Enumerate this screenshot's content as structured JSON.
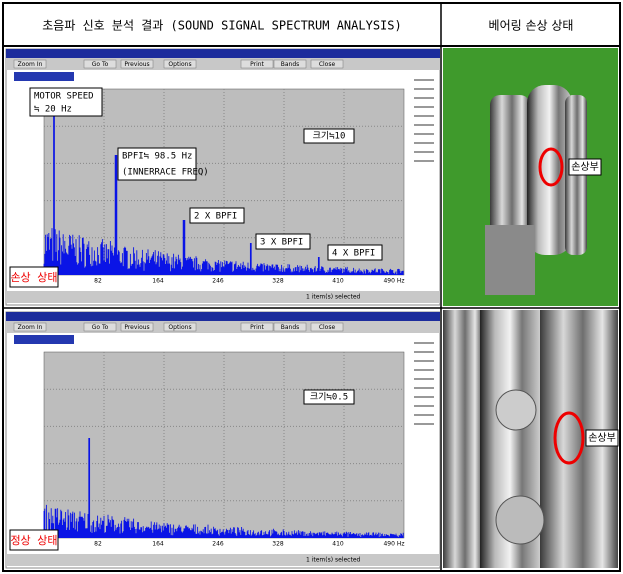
{
  "header": {
    "analysis_title": "초음파 신호 분석 결과 (SOUND SIGNAL SPECTRUM ANALYSIS)",
    "bearing_title": "베어링 손상 상태"
  },
  "toolbar": [
    "Zoom In",
    "Go To",
    "Previous",
    "Options",
    "Print",
    "Bands",
    "Close"
  ],
  "panels": [
    {
      "x_ticks": [
        "82",
        "164",
        "246",
        "328",
        "410",
        "490 Hz"
      ],
      "magnitude": "크기≒10",
      "state": "손상 상태",
      "annotations": [
        "MOTOR SPEED",
        "≒ 20 Hz",
        "BPFI≒ 98.5 Hz",
        "(INNERRACE FREQ)",
        "2 X BPFI",
        "3 X BPFI",
        "4 X BPFI"
      ],
      "status": "1 item(s) selected",
      "photo_label": "손상부"
    },
    {
      "x_ticks": [
        "82",
        "164",
        "246",
        "328",
        "410",
        "490 Hz"
      ],
      "magnitude": "크기≒0.5",
      "state": "정상 상태",
      "status": "1 item(s) selected",
      "photo_label": "손상부"
    }
  ]
}
